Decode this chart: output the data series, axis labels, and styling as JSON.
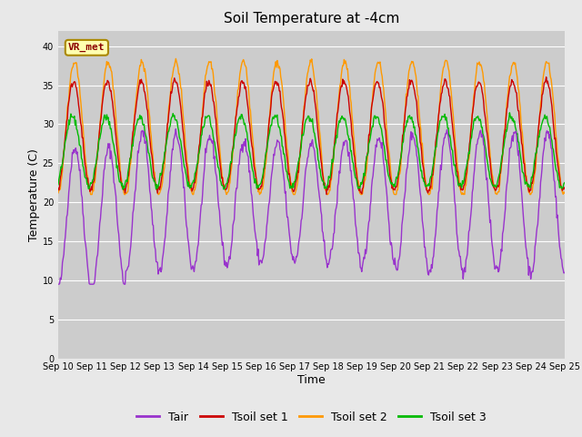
{
  "title": "Soil Temperature at -4cm",
  "xlabel": "Time",
  "ylabel": "Temperature (C)",
  "ylim": [
    0,
    42
  ],
  "yticks": [
    0,
    5,
    10,
    15,
    20,
    25,
    30,
    35,
    40
  ],
  "colors": {
    "Tair": "#9933cc",
    "Tsoil set 1": "#cc0000",
    "Tsoil set 2": "#ff9900",
    "Tsoil set 3": "#00bb00"
  },
  "legend_labels": [
    "Tair",
    "Tsoil set 1",
    "Tsoil set 2",
    "Tsoil set 3"
  ],
  "annotation": "VR_met",
  "background_color": "#e8e8e8",
  "plot_bg_color": "#cccccc",
  "title_fontsize": 11,
  "axis_fontsize": 9,
  "tick_fontsize": 7,
  "n_days": 15,
  "points_per_day": 48,
  "start_day": 10
}
